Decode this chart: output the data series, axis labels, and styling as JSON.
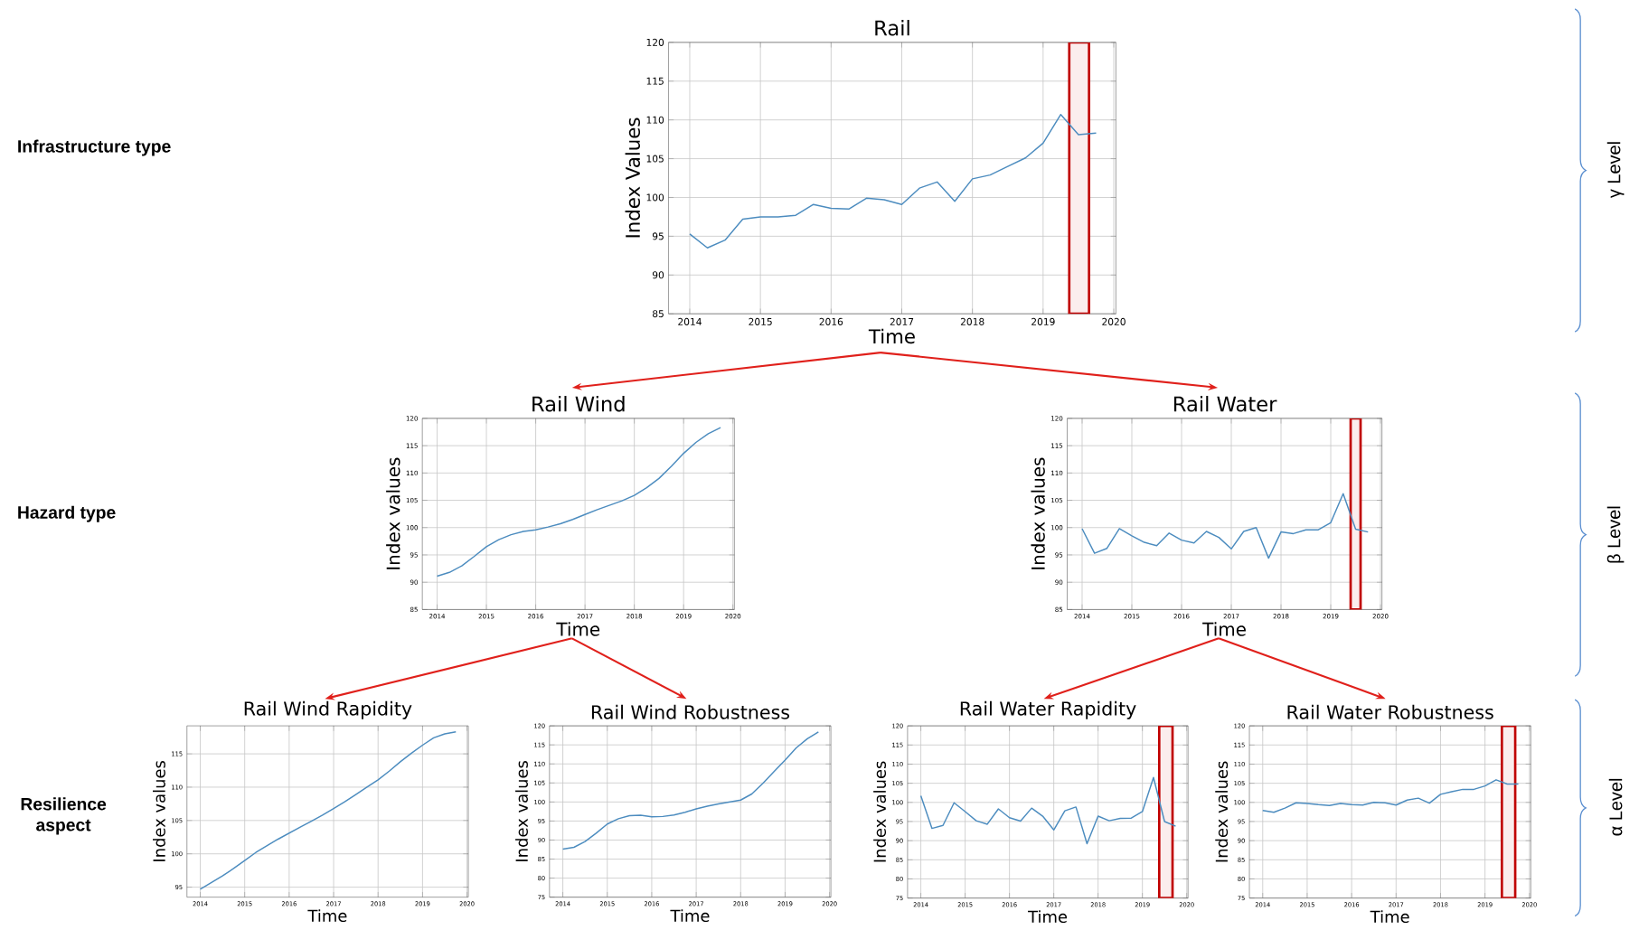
{
  "chart_data": [
    {
      "type": "line",
      "title": "Rail",
      "xlabel": "Time",
      "ylabel": "Index Values",
      "x": [
        2014,
        2014.25,
        2014.5,
        2014.75,
        2015,
        2015.25,
        2015.5,
        2015.75,
        2016,
        2016.25,
        2016.5,
        2016.75,
        2017,
        2017.25,
        2017.5,
        2017.75,
        2018,
        2018.25,
        2018.5,
        2018.75,
        2019,
        2019.25,
        2019.5,
        2019.75
      ],
      "series": [
        {
          "color": "#4c8cbf",
          "values": [
            95.3,
            93.5,
            94.5,
            97.2,
            97.5,
            97.5,
            97.7,
            99.1,
            98.6,
            98.5,
            99.9,
            99.7,
            99.1,
            101.2,
            102.0,
            99.5,
            102.4,
            102.9,
            104.0,
            105.1,
            107.0,
            110.7,
            108.1,
            108.3
          ]
        }
      ],
      "xlim": [
        2013.7,
        2020.03
      ],
      "ylim": [
        85,
        120
      ],
      "xticks": [
        2014,
        2015,
        2016,
        2017,
        2018,
        2019,
        2020
      ],
      "yticks": [
        85,
        90,
        95,
        100,
        105,
        110,
        115,
        120
      ],
      "grid": true,
      "line_style": "solid",
      "bands": [
        {
          "axis": "x",
          "from": 2019.37,
          "to": 2019.65,
          "color": "#fbeded"
        }
      ]
    },
    {
      "type": "line",
      "title": "Rail Wind",
      "xlabel": "Time",
      "ylabel": "Index values",
      "x": [
        2014,
        2014.25,
        2014.5,
        2014.75,
        2015,
        2015.25,
        2015.5,
        2015.75,
        2016,
        2016.25,
        2016.5,
        2016.75,
        2017,
        2017.25,
        2017.5,
        2017.75,
        2018,
        2018.25,
        2018.5,
        2018.75,
        2019,
        2019.25,
        2019.5,
        2019.75
      ],
      "series": [
        {
          "color": "#4c8cbf",
          "values": [
            91.1,
            91.8,
            93.0,
            94.7,
            96.5,
            97.8,
            98.7,
            99.3,
            99.6,
            100.1,
            100.7,
            101.5,
            102.4,
            103.3,
            104.1,
            104.9,
            105.9,
            107.3,
            109.0,
            111.2,
            113.6,
            115.6,
            117.2,
            118.3
          ]
        }
      ],
      "xlim": [
        2013.7,
        2020.03
      ],
      "ylim": [
        85,
        120
      ],
      "xticks": [
        2014,
        2015,
        2016,
        2017,
        2018,
        2019,
        2020
      ],
      "yticks": [
        85,
        90,
        95,
        100,
        105,
        110,
        115,
        120
      ],
      "grid": true,
      "line_style": "solid"
    },
    {
      "type": "line",
      "title": "Rail Water",
      "xlabel": "Time",
      "ylabel": "Index values",
      "x": [
        2014,
        2014.25,
        2014.5,
        2014.75,
        2015,
        2015.25,
        2015.5,
        2015.75,
        2016,
        2016.25,
        2016.5,
        2016.75,
        2017,
        2017.25,
        2017.5,
        2017.75,
        2018,
        2018.25,
        2018.5,
        2018.75,
        2019,
        2019.25,
        2019.5,
        2019.75
      ],
      "series": [
        {
          "color": "#4c8cbf",
          "values": [
            99.8,
            95.3,
            96.2,
            99.8,
            98.5,
            97.3,
            96.7,
            99.0,
            97.7,
            97.2,
            99.3,
            98.2,
            96.1,
            99.3,
            100.0,
            94.4,
            99.2,
            98.9,
            99.6,
            99.6,
            100.9,
            106.2,
            99.7,
            99.2
          ]
        }
      ],
      "xlim": [
        2013.7,
        2020.03
      ],
      "ylim": [
        85,
        120
      ],
      "xticks": [
        2014,
        2015,
        2016,
        2017,
        2018,
        2019,
        2020
      ],
      "yticks": [
        85,
        90,
        95,
        100,
        105,
        110,
        115,
        120
      ],
      "grid": true,
      "line_style": "solid",
      "bands": [
        {
          "axis": "x",
          "from": 2019.4,
          "to": 2019.6,
          "color": "#fbeded"
        }
      ]
    },
    {
      "type": "line",
      "title": "Rail Wind Rapidity",
      "xlabel": "Time",
      "ylabel": "Index values",
      "x": [
        2014,
        2014.25,
        2014.5,
        2014.75,
        2015,
        2015.25,
        2015.5,
        2015.75,
        2016,
        2016.25,
        2016.5,
        2016.75,
        2017,
        2017.25,
        2017.5,
        2017.75,
        2018,
        2018.25,
        2018.5,
        2018.75,
        2019,
        2019.25,
        2019.5,
        2019.75
      ],
      "series": [
        {
          "color": "#4c8cbf",
          "values": [
            94.7,
            95.7,
            96.7,
            97.8,
            99.0,
            100.2,
            101.2,
            102.2,
            103.1,
            104.0,
            104.9,
            105.8,
            106.8,
            107.8,
            108.9,
            110.0,
            111.1,
            112.4,
            113.8,
            115.1,
            116.3,
            117.4,
            118.0,
            118.3
          ]
        }
      ],
      "xlim": [
        2013.7,
        2020.03
      ],
      "ylim": [
        93.5,
        119.2
      ],
      "xticks": [
        2014,
        2015,
        2016,
        2017,
        2018,
        2019,
        2020
      ],
      "yticks": [
        95,
        100,
        105,
        110,
        115
      ],
      "grid": true,
      "line_style": "solid"
    },
    {
      "type": "line",
      "title": "Rail Wind Robustness",
      "xlabel": "Time",
      "ylabel": "Index values",
      "x": [
        2014,
        2014.25,
        2014.5,
        2014.75,
        2015,
        2015.25,
        2015.5,
        2015.75,
        2016,
        2016.25,
        2016.5,
        2016.75,
        2017,
        2017.25,
        2017.5,
        2017.75,
        2018,
        2018.25,
        2018.5,
        2018.75,
        2019,
        2019.25,
        2019.5,
        2019.75
      ],
      "series": [
        {
          "color": "#4c8cbf",
          "values": [
            87.6,
            88.1,
            89.6,
            91.8,
            94.2,
            95.6,
            96.4,
            96.5,
            96.1,
            96.2,
            96.6,
            97.3,
            98.2,
            98.9,
            99.5,
            100.0,
            100.5,
            102.1,
            104.9,
            108.0,
            111.0,
            114.2,
            116.6,
            118.4
          ]
        }
      ],
      "xlim": [
        2013.7,
        2020.03
      ],
      "ylim": [
        75,
        120
      ],
      "xticks": [
        2014,
        2015,
        2016,
        2017,
        2018,
        2019,
        2020
      ],
      "yticks": [
        75,
        80,
        85,
        90,
        95,
        100,
        105,
        110,
        115,
        120
      ],
      "grid": true,
      "line_style": "solid"
    },
    {
      "type": "line",
      "title": "Rail Water Rapidity",
      "xlabel": "Time",
      "ylabel": "Index values",
      "x": [
        2014,
        2014.25,
        2014.5,
        2014.75,
        2015,
        2015.25,
        2015.5,
        2015.75,
        2016,
        2016.25,
        2016.5,
        2016.75,
        2017,
        2017.25,
        2017.5,
        2017.75,
        2018,
        2018.25,
        2018.5,
        2018.75,
        2019,
        2019.25,
        2019.5,
        2019.75
      ],
      "series": [
        {
          "color": "#4c8cbf",
          "values": [
            101.7,
            93.2,
            94.0,
            99.9,
            97.6,
            95.2,
            94.3,
            98.3,
            96.0,
            95.1,
            98.5,
            96.4,
            92.8,
            97.8,
            98.8,
            89.2,
            96.4,
            95.2,
            95.8,
            95.9,
            97.6,
            106.5,
            95.0,
            93.8
          ]
        }
      ],
      "xlim": [
        2013.7,
        2020.03
      ],
      "ylim": [
        75,
        120
      ],
      "xticks": [
        2014,
        2015,
        2016,
        2017,
        2018,
        2019,
        2020
      ],
      "yticks": [
        75,
        80,
        85,
        90,
        95,
        100,
        105,
        110,
        115,
        120
      ],
      "grid": true,
      "line_style": "solid",
      "bands": [
        {
          "axis": "x",
          "from": 2019.38,
          "to": 2019.68,
          "color": "#fbeded"
        }
      ]
    },
    {
      "type": "line",
      "title": "Rail Water Robustness",
      "xlabel": "Time",
      "ylabel": "Index values",
      "x": [
        2014,
        2014.25,
        2014.5,
        2014.75,
        2015,
        2015.25,
        2015.5,
        2015.75,
        2016,
        2016.25,
        2016.5,
        2016.75,
        2017,
        2017.25,
        2017.5,
        2017.75,
        2018,
        2018.25,
        2018.5,
        2018.75,
        2019,
        2019.25,
        2019.5,
        2019.75
      ],
      "series": [
        {
          "color": "#4c8cbf",
          "values": [
            97.9,
            97.4,
            98.5,
            99.9,
            99.7,
            99.4,
            99.2,
            99.7,
            99.4,
            99.3,
            100.0,
            99.9,
            99.3,
            100.6,
            101.1,
            99.8,
            102.1,
            102.8,
            103.4,
            103.4,
            104.3,
            105.9,
            104.8,
            104.8
          ]
        }
      ],
      "xlim": [
        2013.7,
        2020.03
      ],
      "ylim": [
        75,
        120
      ],
      "xticks": [
        2014,
        2015,
        2016,
        2017,
        2018,
        2019,
        2020
      ],
      "yticks": [
        75,
        80,
        85,
        90,
        95,
        100,
        105,
        110,
        115,
        120
      ],
      "grid": true,
      "line_style": "solid",
      "bands": [
        {
          "axis": "x",
          "from": 2019.38,
          "to": 2019.68,
          "color": "#fbeded"
        }
      ]
    },
    {
      "type": "other",
      "annotations": [
        "Infrastructure type",
        "Hazard type",
        "Resilience aspect",
        "γ Level",
        "β Level",
        "α Level"
      ]
    }
  ]
}
